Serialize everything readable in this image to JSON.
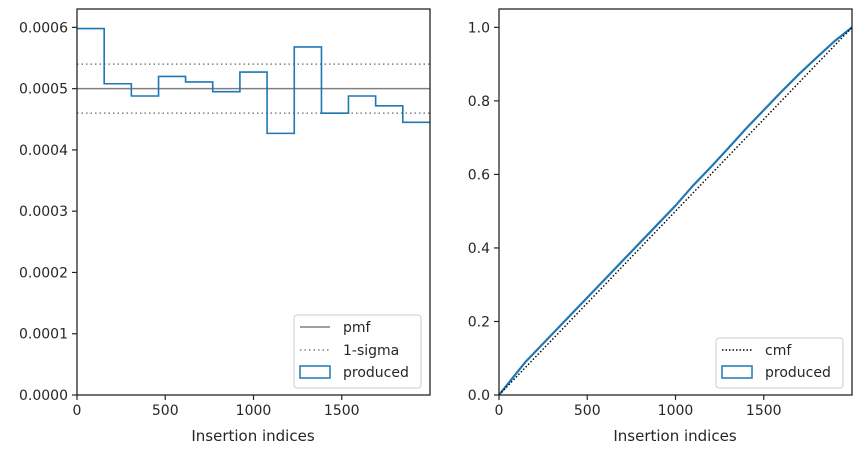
{
  "chart_data": [
    {
      "type": "histogram-step",
      "xlabel": "Insertion indices",
      "ylabel": "",
      "xlim": [
        0,
        2000
      ],
      "ylim": [
        0,
        0.00063
      ],
      "xticks": [
        0,
        500,
        1000,
        1500
      ],
      "yticks": [
        0.0,
        0.0001,
        0.0002,
        0.0003,
        0.0004,
        0.0005,
        0.0006
      ],
      "ytick_labels": [
        "0.0000",
        "0.0001",
        "0.0002",
        "0.0003",
        "0.0004",
        "0.0005",
        "0.0006"
      ],
      "legend_position": "lower-right",
      "legend": [
        "pmf",
        "1-sigma",
        "produced"
      ],
      "pmf": 0.0005,
      "sigma_band": [
        0.00046,
        0.00054
      ],
      "bins": [
        0,
        154,
        308,
        462,
        615,
        769,
        923,
        1077,
        1231,
        1385,
        1538,
        1692,
        1846,
        2000
      ],
      "values": [
        0.000598,
        0.000508,
        0.000488,
        0.00052,
        0.000511,
        0.000495,
        0.000527,
        0.000427,
        0.000568,
        0.00046,
        0.000488,
        0.000472,
        0.000445
      ],
      "colors": {
        "produced": "#1f77b4",
        "pmf": "#808080",
        "sigma": "#808080"
      }
    },
    {
      "type": "line",
      "xlabel": "Insertion indices",
      "ylabel": "",
      "xlim": [
        0,
        2000
      ],
      "ylim": [
        0,
        1.05
      ],
      "xticks": [
        0,
        500,
        1000,
        1500
      ],
      "yticks": [
        0.0,
        0.2,
        0.4,
        0.6,
        0.8,
        1.0
      ],
      "ytick_labels": [
        "0.0",
        "0.2",
        "0.4",
        "0.6",
        "0.8",
        "1.0"
      ],
      "legend_position": "lower-right",
      "legend": [
        "cmf",
        "produced"
      ],
      "series": [
        {
          "name": "cmf",
          "x": [
            0,
            2000
          ],
          "y": [
            0,
            1.0
          ],
          "style": "dotted",
          "color": "#000000"
        },
        {
          "name": "produced",
          "x": [
            0,
            50,
            100,
            150,
            200,
            300,
            400,
            500,
            600,
            700,
            800,
            900,
            1000,
            1100,
            1200,
            1300,
            1400,
            1500,
            1600,
            1700,
            1800,
            1900,
            2000
          ],
          "y": [
            0,
            0.03,
            0.06,
            0.09,
            0.115,
            0.165,
            0.215,
            0.265,
            0.315,
            0.365,
            0.415,
            0.465,
            0.515,
            0.57,
            0.62,
            0.672,
            0.725,
            0.775,
            0.825,
            0.873,
            0.918,
            0.962,
            1.0
          ],
          "style": "solid",
          "color": "#1f77b4"
        }
      ]
    }
  ]
}
